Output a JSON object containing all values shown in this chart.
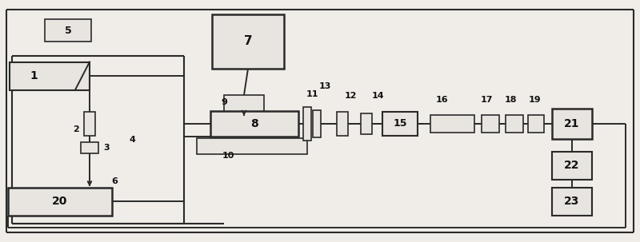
{
  "bg_color": "#f0ede8",
  "line_color": "#2a2a2a",
  "box_fill": "#e8e5e0",
  "box_edge": "#2a2a2a",
  "label_color": "#111111"
}
